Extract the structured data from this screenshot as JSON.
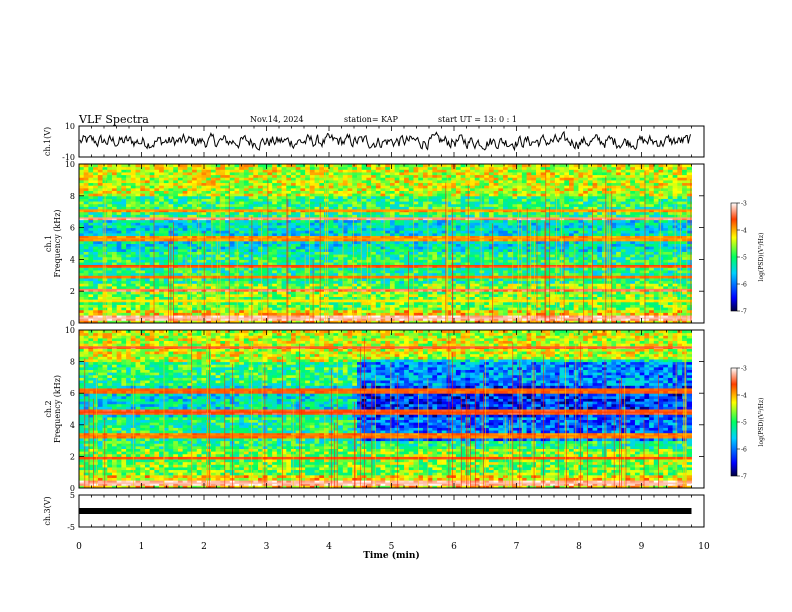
{
  "header": {
    "title": "VLF Spectra",
    "date": "Nov.14, 2024",
    "station": "station= KAP",
    "start": "start  UT  =   13: 0  : 1"
  },
  "chart_data": [
    {
      "panel": "ch1-waveform",
      "type": "line",
      "ylabel": "ch.1(V)",
      "yticks": [
        "10",
        "-10"
      ],
      "ylim": [
        -10,
        10
      ],
      "xlim": [
        0,
        10
      ],
      "description_series": "noise waveform, amplitude roughly -5..+5 V",
      "x_end": 9.8
    },
    {
      "panel": "ch1-spectrogram",
      "type": "heatmap",
      "ylabel": "ch.1\nFrequency (kHz)",
      "ylabel_lines": [
        "ch.1",
        "Frequency (kHz)"
      ],
      "ylim": [
        0,
        10
      ],
      "yticks": [
        "0",
        "2",
        "4",
        "6",
        "8",
        "10"
      ],
      "xlim": [
        0,
        10
      ],
      "x_end": 9.8,
      "colorbar": {
        "label": "log(PSD)(V²/Hz)",
        "ticks": [
          "-3",
          "-4",
          "-5",
          "-6",
          "-7"
        ],
        "range": [
          -7,
          -3
        ]
      },
      "bands_khz": [
        {
          "f": 0.3,
          "level": -3.2
        },
        {
          "f": 1.4,
          "level": -4.2
        },
        {
          "f": 2.1,
          "level": -3.4
        },
        {
          "f": 2.9,
          "level": -3.8
        },
        {
          "f": 3.6,
          "level": -3.6
        },
        {
          "f": 5.3,
          "level": -3.9
        },
        {
          "f": 6.6,
          "level": -3.3
        },
        {
          "f": 7.1,
          "level": -3.9
        }
      ]
    },
    {
      "panel": "ch2-spectrogram",
      "type": "heatmap",
      "ylabel_lines": [
        "ch.2",
        "Frequency (kHz)"
      ],
      "ylim": [
        0,
        10
      ],
      "yticks": [
        "0",
        "2",
        "4",
        "6",
        "8",
        "10"
      ],
      "xlim": [
        0,
        10
      ],
      "x_end": 9.8,
      "colorbar": {
        "label": "log(PSD)(V²/Hz)",
        "ticks": [
          "-3",
          "-4",
          "-5",
          "-6",
          "-7"
        ],
        "range": [
          -7,
          -3
        ]
      },
      "bands_khz": [
        {
          "f": 0.3,
          "level": -3.2
        },
        {
          "f": 1.9,
          "level": -3.6
        },
        {
          "f": 3.3,
          "level": -3.8
        },
        {
          "f": 4.8,
          "level": -3.6
        },
        {
          "f": 6.2,
          "level": -3.7
        },
        {
          "f": 8.9,
          "level": -3.5
        }
      ]
    },
    {
      "panel": "ch3-waveform",
      "type": "line",
      "ylabel": "ch.3(V)",
      "yticks": [
        "5",
        "-5"
      ],
      "ylim": [
        -5,
        5
      ],
      "xlim": [
        0,
        10
      ],
      "x_end": 9.8,
      "xlabel": "Time  (min)",
      "xticks": [
        "0",
        "1",
        "2",
        "3",
        "4",
        "5",
        "6",
        "7",
        "8",
        "9",
        "10"
      ]
    }
  ]
}
